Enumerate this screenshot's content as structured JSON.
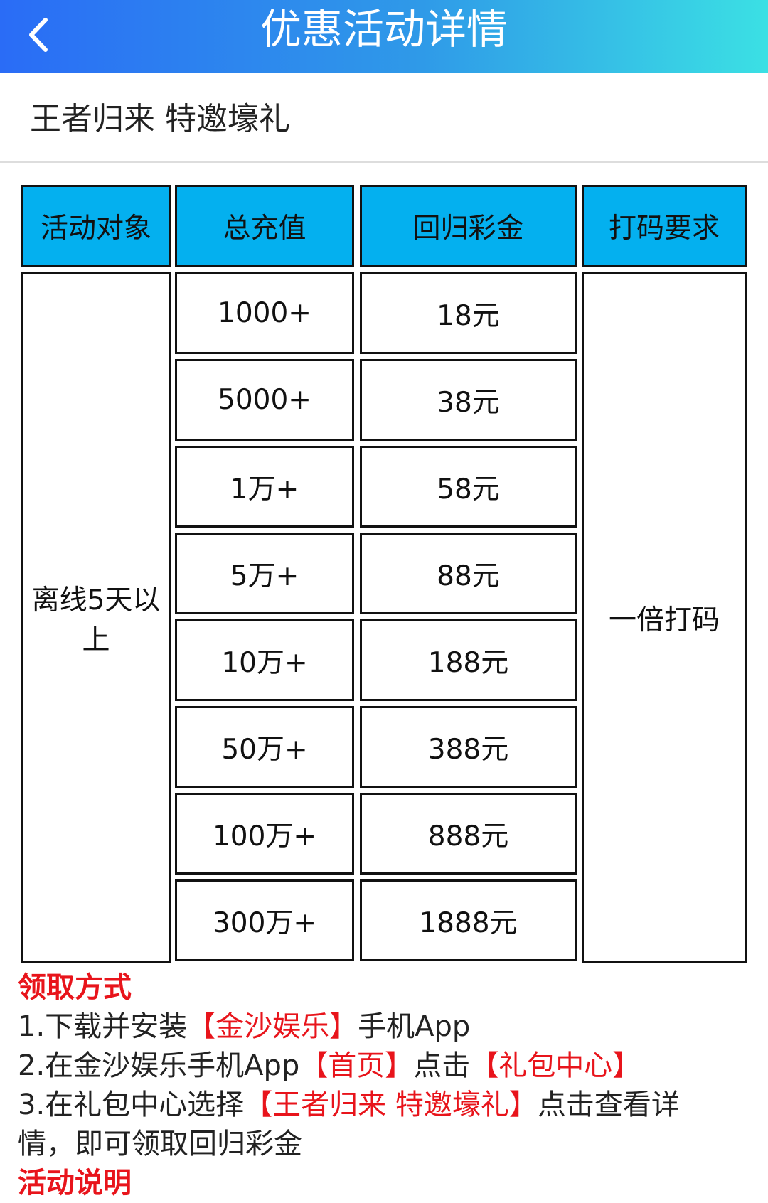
{
  "header": {
    "title": "优惠活动详情",
    "back_icon": "chevron-left-icon"
  },
  "promo_title": "王者归来 特邀壕礼",
  "table": {
    "headers": [
      "活动对象",
      "总充值",
      "回归彩金",
      "打码要求"
    ],
    "target": "离线5天以上",
    "rows": [
      {
        "deposit": "1000+",
        "bonus": "18元"
      },
      {
        "deposit": "5000+",
        "bonus": "38元"
      },
      {
        "deposit": "1万+",
        "bonus": "58元"
      },
      {
        "deposit": "5万+",
        "bonus": "88元"
      },
      {
        "deposit": "10万+",
        "bonus": "188元"
      },
      {
        "deposit": "50万+",
        "bonus": "388元"
      },
      {
        "deposit": "100万+",
        "bonus": "888元"
      },
      {
        "deposit": "300万+",
        "bonus": "1888元"
      }
    ],
    "wagering": "一倍打码",
    "header_color": "#04b0ef"
  },
  "claim": {
    "heading": "领取方式",
    "step1": {
      "a": "1.下载并安装",
      "b": "【金沙娱乐】",
      "c": "手机App"
    },
    "step2": {
      "a": "2.在金沙娱乐手机App",
      "b": "【首页】",
      "c": "点击",
      "d": "【礼包中心】"
    },
    "step3": {
      "a": "3.在礼包中心选择",
      "b": "【王者归来 特邀壕礼】",
      "c": "点击查看详",
      "d": "情，即可领取回归彩金"
    }
  },
  "details_heading": "活动说明",
  "accent_color": "#e8141b"
}
